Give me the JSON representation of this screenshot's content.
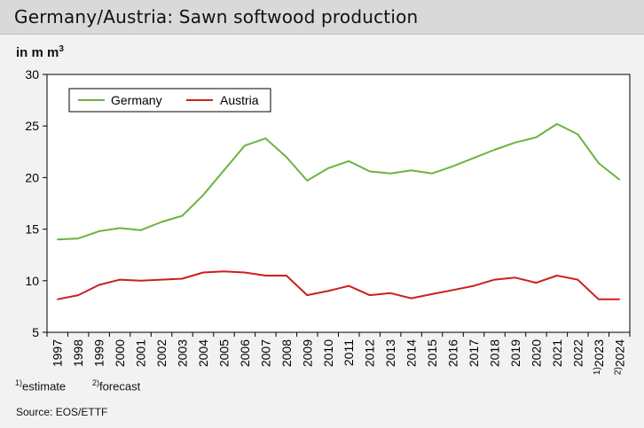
{
  "title": "Germany/Austria: Sawn softwood production",
  "unit": {
    "text": "in m m",
    "sup": "3"
  },
  "footnotes": [
    {
      "mark": "1)",
      "text": "estimate"
    },
    {
      "mark": "2)",
      "text": "forecast"
    }
  ],
  "source": "Source: EOS/ETTF",
  "colors": {
    "germany": "#6db33f",
    "austria": "#cc1f1f"
  },
  "chart_data": {
    "type": "line",
    "x": [
      "1997",
      "1998",
      "1999",
      "2000",
      "2001",
      "2002",
      "2003",
      "2004",
      "2005",
      "2006",
      "2007",
      "2008",
      "2009",
      "2010",
      "2011",
      "2012",
      "2013",
      "2014",
      "2015",
      "2016",
      "2017",
      "2018",
      "2019",
      "2020",
      "2021",
      "2022",
      "2023",
      "2024"
    ],
    "x_marks": {
      "2023": "1)",
      "2024": "2)"
    },
    "ylim": [
      5,
      30
    ],
    "yticks": [
      5,
      10,
      15,
      20,
      25,
      30
    ],
    "grid": false,
    "legend": "top-left",
    "series": [
      {
        "name": "Germany",
        "color": "#6db33f",
        "values": [
          14.0,
          14.1,
          14.8,
          15.1,
          14.9,
          15.7,
          16.3,
          18.3,
          20.7,
          23.1,
          23.8,
          22.0,
          19.7,
          20.9,
          21.6,
          20.6,
          20.4,
          20.7,
          20.4,
          21.1,
          21.9,
          22.7,
          23.4,
          23.9,
          25.2,
          24.2,
          21.4,
          19.8
        ]
      },
      {
        "name": "Austria",
        "color": "#cc1f1f",
        "values": [
          8.2,
          8.6,
          9.6,
          10.1,
          10.0,
          10.1,
          10.2,
          10.8,
          10.9,
          10.8,
          10.5,
          10.5,
          8.6,
          9.0,
          9.5,
          8.6,
          8.8,
          8.3,
          8.7,
          9.1,
          9.5,
          10.1,
          10.3,
          9.8,
          10.5,
          10.1,
          8.2,
          8.2
        ]
      }
    ]
  }
}
